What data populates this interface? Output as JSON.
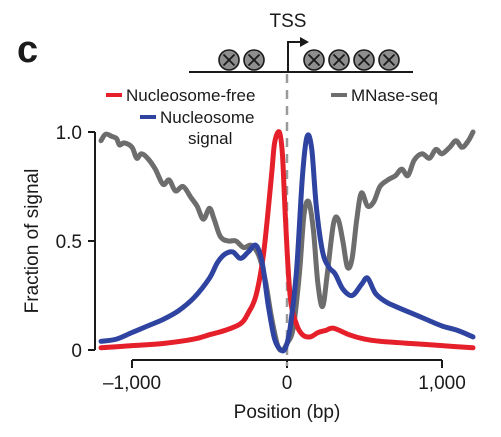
{
  "panel_label": "c",
  "schematic": {
    "tss_label": "TSS",
    "nucleosomes_upstream": 2,
    "nucleosomes_downstream": 4
  },
  "colors": {
    "nucleosome_free": "#e5202a",
    "nucleosome_signal": "#2f44a0",
    "mnase_seq": "#6d6d6d",
    "tss_line": "#9a9a9a",
    "axis": "#1a1a1a"
  },
  "chart_data": {
    "type": "line",
    "xlabel": "Position (bp)",
    "ylabel": "Fraction of signal",
    "xlim": [
      -1200,
      1200
    ],
    "ylim": [
      0,
      1.0
    ],
    "x_ticks": [
      -1000,
      0,
      1000
    ],
    "x_tick_labels": [
      "–1,000",
      "0",
      "1,000"
    ],
    "y_ticks": [
      0,
      0.5,
      1.0
    ],
    "y_tick_labels": [
      "0",
      "0.5",
      "1.0"
    ],
    "grid": false,
    "reference_line_x": 0,
    "series": [
      {
        "name": "Nucleosome-free",
        "legend": [
          "Nucleosome-free"
        ],
        "points": [
          [
            -1200,
            0.01
          ],
          [
            -1000,
            0.02
          ],
          [
            -800,
            0.03
          ],
          [
            -600,
            0.05
          ],
          [
            -500,
            0.07
          ],
          [
            -400,
            0.09
          ],
          [
            -300,
            0.12
          ],
          [
            -250,
            0.17
          ],
          [
            -200,
            0.25
          ],
          [
            -150,
            0.45
          ],
          [
            -100,
            0.8
          ],
          [
            -80,
            0.95
          ],
          [
            -50,
            1.0
          ],
          [
            -30,
            0.9
          ],
          [
            -10,
            0.6
          ],
          [
            20,
            0.25
          ],
          [
            60,
            0.12
          ],
          [
            100,
            0.07
          ],
          [
            150,
            0.06
          ],
          [
            200,
            0.08
          ],
          [
            250,
            0.09
          ],
          [
            300,
            0.1
          ],
          [
            400,
            0.07
          ],
          [
            500,
            0.05
          ],
          [
            600,
            0.04
          ],
          [
            800,
            0.03
          ],
          [
            1000,
            0.02
          ],
          [
            1200,
            0.01
          ]
        ]
      },
      {
        "name": "Nucleosome signal",
        "legend": [
          "Nucleosome",
          "signal"
        ],
        "points": [
          [
            -1200,
            0.04
          ],
          [
            -1100,
            0.05
          ],
          [
            -1000,
            0.08
          ],
          [
            -900,
            0.11
          ],
          [
            -800,
            0.14
          ],
          [
            -700,
            0.18
          ],
          [
            -600,
            0.24
          ],
          [
            -500,
            0.33
          ],
          [
            -450,
            0.4
          ],
          [
            -400,
            0.44
          ],
          [
            -350,
            0.45
          ],
          [
            -300,
            0.42
          ],
          [
            -250,
            0.45
          ],
          [
            -200,
            0.48
          ],
          [
            -160,
            0.4
          ],
          [
            -120,
            0.2
          ],
          [
            -80,
            0.05
          ],
          [
            -40,
            0.0
          ],
          [
            -10,
            0.01
          ],
          [
            20,
            0.1
          ],
          [
            60,
            0.35
          ],
          [
            100,
            0.8
          ],
          [
            130,
            0.98
          ],
          [
            160,
            0.92
          ],
          [
            190,
            0.65
          ],
          [
            230,
            0.45
          ],
          [
            270,
            0.38
          ],
          [
            310,
            0.35
          ],
          [
            360,
            0.28
          ],
          [
            420,
            0.25
          ],
          [
            480,
            0.3
          ],
          [
            520,
            0.33
          ],
          [
            570,
            0.26
          ],
          [
            640,
            0.22
          ],
          [
            700,
            0.2
          ],
          [
            800,
            0.17
          ],
          [
            900,
            0.14
          ],
          [
            1000,
            0.11
          ],
          [
            1100,
            0.09
          ],
          [
            1200,
            0.06
          ]
        ]
      },
      {
        "name": "MNase-seq",
        "legend": [
          "MNase-seq"
        ],
        "points": [
          [
            -1200,
            0.96
          ],
          [
            -1170,
            0.99
          ],
          [
            -1130,
            0.98
          ],
          [
            -1100,
            0.97
          ],
          [
            -1080,
            0.94
          ],
          [
            -1050,
            0.95
          ],
          [
            -1000,
            0.93
          ],
          [
            -970,
            0.88
          ],
          [
            -940,
            0.9
          ],
          [
            -900,
            0.88
          ],
          [
            -850,
            0.83
          ],
          [
            -800,
            0.76
          ],
          [
            -760,
            0.78
          ],
          [
            -720,
            0.73
          ],
          [
            -670,
            0.75
          ],
          [
            -620,
            0.7
          ],
          [
            -580,
            0.66
          ],
          [
            -540,
            0.6
          ],
          [
            -500,
            0.65
          ],
          [
            -470,
            0.6
          ],
          [
            -430,
            0.52
          ],
          [
            -380,
            0.5
          ],
          [
            -330,
            0.5
          ],
          [
            -280,
            0.47
          ],
          [
            -230,
            0.48
          ],
          [
            -180,
            0.43
          ],
          [
            -140,
            0.32
          ],
          [
            -100,
            0.15
          ],
          [
            -60,
            0.02
          ],
          [
            -30,
            0.0
          ],
          [
            0,
            0.03
          ],
          [
            40,
            0.1
          ],
          [
            80,
            0.35
          ],
          [
            110,
            0.62
          ],
          [
            140,
            0.68
          ],
          [
            170,
            0.55
          ],
          [
            200,
            0.3
          ],
          [
            230,
            0.2
          ],
          [
            260,
            0.35
          ],
          [
            300,
            0.58
          ],
          [
            330,
            0.6
          ],
          [
            360,
            0.5
          ],
          [
            390,
            0.38
          ],
          [
            420,
            0.42
          ],
          [
            450,
            0.6
          ],
          [
            480,
            0.72
          ],
          [
            520,
            0.66
          ],
          [
            560,
            0.68
          ],
          [
            600,
            0.75
          ],
          [
            650,
            0.78
          ],
          [
            700,
            0.8
          ],
          [
            740,
            0.83
          ],
          [
            780,
            0.8
          ],
          [
            820,
            0.87
          ],
          [
            870,
            0.9
          ],
          [
            920,
            0.88
          ],
          [
            960,
            0.92
          ],
          [
            1000,
            0.9
          ],
          [
            1050,
            0.93
          ],
          [
            1090,
            0.96
          ],
          [
            1130,
            0.93
          ],
          [
            1170,
            0.96
          ],
          [
            1200,
            1.0
          ]
        ]
      }
    ]
  }
}
